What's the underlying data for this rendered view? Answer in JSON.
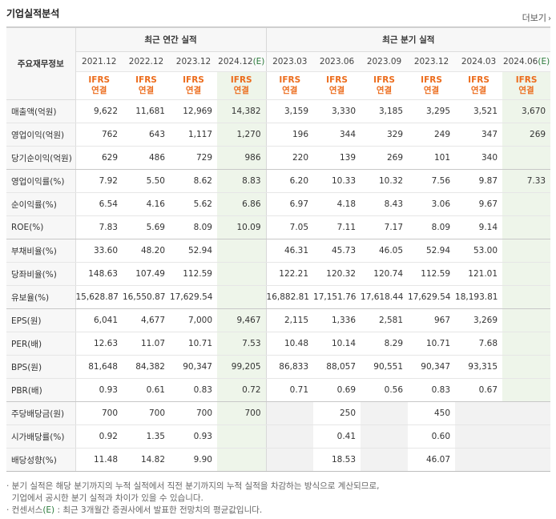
{
  "title": "기업실적분석",
  "more_label": "더보기",
  "row_header_label": "주요재무정보",
  "groups": {
    "annual": "최근 연간 실적",
    "quarter": "최근 분기 실적"
  },
  "periods": [
    "2021.12",
    "2022.12",
    "2023.12",
    "2024.12",
    "2023.03",
    "2023.06",
    "2023.09",
    "2023.12",
    "2024.03",
    "2024.06"
  ],
  "estimate_mark": "(E)",
  "ifrs_top": "IFRS",
  "ifrs_bottom": "연결",
  "rows": [
    {
      "label": "매출액(억원)",
      "values": [
        "9,622",
        "11,681",
        "12,969",
        "14,382",
        "3,159",
        "3,330",
        "3,185",
        "3,295",
        "3,521",
        "3,670"
      ]
    },
    {
      "label": "영업이익(억원)",
      "values": [
        "762",
        "643",
        "1,117",
        "1,270",
        "196",
        "344",
        "329",
        "249",
        "347",
        "269"
      ]
    },
    {
      "label": "당기순이익(억원)",
      "values": [
        "629",
        "486",
        "729",
        "986",
        "220",
        "139",
        "269",
        "101",
        "340",
        ""
      ]
    },
    {
      "label": "영업이익률(%)",
      "values": [
        "7.92",
        "5.50",
        "8.62",
        "8.83",
        "6.20",
        "10.33",
        "10.32",
        "7.56",
        "9.87",
        "7.33"
      ]
    },
    {
      "label": "순이익률(%)",
      "values": [
        "6.54",
        "4.16",
        "5.62",
        "6.86",
        "6.97",
        "4.18",
        "8.43",
        "3.06",
        "9.67",
        ""
      ]
    },
    {
      "label": "ROE(%)",
      "values": [
        "7.83",
        "5.69",
        "8.09",
        "10.09",
        "7.05",
        "7.11",
        "7.17",
        "8.09",
        "9.14",
        ""
      ]
    },
    {
      "label": "부채비율(%)",
      "values": [
        "33.60",
        "48.20",
        "52.94",
        "",
        "46.31",
        "45.73",
        "46.05",
        "52.94",
        "53.00",
        ""
      ]
    },
    {
      "label": "당좌비율(%)",
      "values": [
        "148.63",
        "107.49",
        "112.59",
        "",
        "122.21",
        "120.32",
        "120.74",
        "112.59",
        "121.01",
        ""
      ]
    },
    {
      "label": "유보율(%)",
      "values": [
        "15,628.87",
        "16,550.87",
        "17,629.54",
        "",
        "16,882.81",
        "17,151.76",
        "17,618.44",
        "17,629.54",
        "18,193.81",
        ""
      ]
    },
    {
      "label": "EPS(원)",
      "values": [
        "6,041",
        "4,677",
        "7,000",
        "9,467",
        "2,115",
        "1,336",
        "2,581",
        "967",
        "3,269",
        ""
      ]
    },
    {
      "label": "PER(배)",
      "values": [
        "12.63",
        "11.07",
        "10.71",
        "7.53",
        "10.48",
        "10.14",
        "8.29",
        "10.71",
        "7.68",
        ""
      ]
    },
    {
      "label": "BPS(원)",
      "values": [
        "81,648",
        "84,382",
        "90,347",
        "99,205",
        "86,833",
        "88,057",
        "90,551",
        "90,347",
        "93,315",
        ""
      ]
    },
    {
      "label": "PBR(배)",
      "values": [
        "0.93",
        "0.61",
        "0.83",
        "0.72",
        "0.71",
        "0.69",
        "0.56",
        "0.83",
        "0.67",
        ""
      ]
    },
    {
      "label": "주당배당금(원)",
      "values": [
        "700",
        "700",
        "700",
        "700",
        "",
        "250",
        "",
        "450",
        "",
        ""
      ]
    },
    {
      "label": "시가배당률(%)",
      "values": [
        "0.92",
        "1.35",
        "0.93",
        "",
        "",
        "0.41",
        "",
        "0.60",
        "",
        ""
      ]
    },
    {
      "label": "배당성향(%)",
      "values": [
        "11.48",
        "14.82",
        "9.90",
        "",
        "",
        "18.53",
        "",
        "46.07",
        "",
        ""
      ]
    }
  ],
  "notes": {
    "line1": "· 분기 실적은 해당 분기까지의 누적 실적에서 직전 분기까지의 누적 실적을 차감하는 방식으로 계산되므로,",
    "line2": "  기업에서 공시한 분기 실적과 차이가 있을 수 있습니다.",
    "line3_prefix": "· 컨센서스",
    "line3_mark": "(E)",
    "line3_suffix": " : 최근 3개월간 증권사에서 발표한 전망치의 평균값입니다."
  }
}
